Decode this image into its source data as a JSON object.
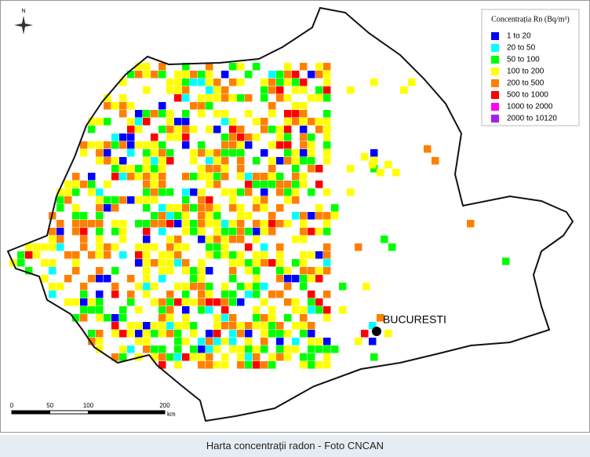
{
  "legend": {
    "title": "Concentrația Rn (Bq/m³)",
    "items": [
      {
        "label": "1  to  20",
        "color": "#0000ff"
      },
      {
        "label": "20  to  50",
        "color": "#00ffff"
      },
      {
        "label": "50  to  100",
        "color": "#00ff00"
      },
      {
        "label": "100  to  200",
        "color": "#ffff00"
      },
      {
        "label": "200  to  500",
        "color": "#ff8000"
      },
      {
        "label": "500  to  1000",
        "color": "#ff0000"
      },
      {
        "label": "1000  to  2000",
        "color": "#ff00ff"
      },
      {
        "label": "2000  to  10120",
        "color": "#a020f0"
      }
    ]
  },
  "compass": "N",
  "city": "BUCURESTI",
  "scale": {
    "ticks": [
      0,
      50,
      100,
      200
    ],
    "unit": "km"
  },
  "caption": "Harta concentrații radon - Foto CNCAN"
}
